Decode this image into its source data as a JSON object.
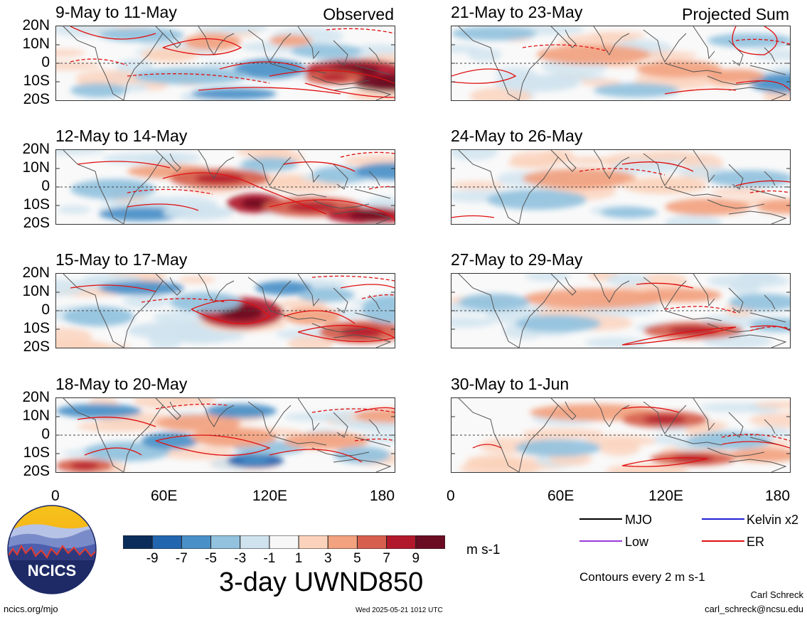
{
  "panels_left": [
    {
      "title": "9-May to 11-May",
      "tag": "Observed"
    },
    {
      "title": "12-May to 14-May",
      "tag": ""
    },
    {
      "title": "15-May to 17-May",
      "tag": ""
    },
    {
      "title": "18-May to 20-May",
      "tag": ""
    }
  ],
  "panels_right": [
    {
      "title": "21-May to 23-May",
      "tag": "Projected Sum"
    },
    {
      "title": "24-May to 26-May",
      "tag": ""
    },
    {
      "title": "27-May to 29-May",
      "tag": ""
    },
    {
      "title": "30-May to 1-Jun",
      "tag": ""
    }
  ],
  "lat_labels": [
    "20N",
    "10N",
    "0",
    "10S",
    "20S"
  ],
  "lon_labels": [
    "0",
    "60E",
    "120E",
    "180"
  ],
  "colorbar": {
    "colors": [
      "#0b2d5c",
      "#2266b0",
      "#4a90c8",
      "#92c2de",
      "#cfe3ef",
      "#f7f7f7",
      "#fbd2bb",
      "#f2a27f",
      "#d6604d",
      "#b2182b",
      "#6b0c22"
    ],
    "tick_labels": [
      "-9",
      "-7",
      "-5",
      "-3",
      "-1",
      "1",
      "3",
      "5",
      "7",
      "9"
    ],
    "units": "m s-1"
  },
  "product_title": "3-day UWND850",
  "legend": [
    {
      "label": "MJO",
      "color": "#000000"
    },
    {
      "label": "Kelvin x2",
      "color": "#1f1fd6"
    },
    {
      "label": "Low",
      "color": "#9a3ad8"
    },
    {
      "label": "ER",
      "color": "#e01010"
    }
  ],
  "contour_note": "Contours every 2 m s-1",
  "footer": {
    "site": "ncics.org/mjo",
    "timestamp": "Wed 2025-05-21 1012 UTC",
    "author": "Carl Schreck",
    "email": "carl_schreck@ncsu.edu",
    "logo_text": "NCICS"
  }
}
